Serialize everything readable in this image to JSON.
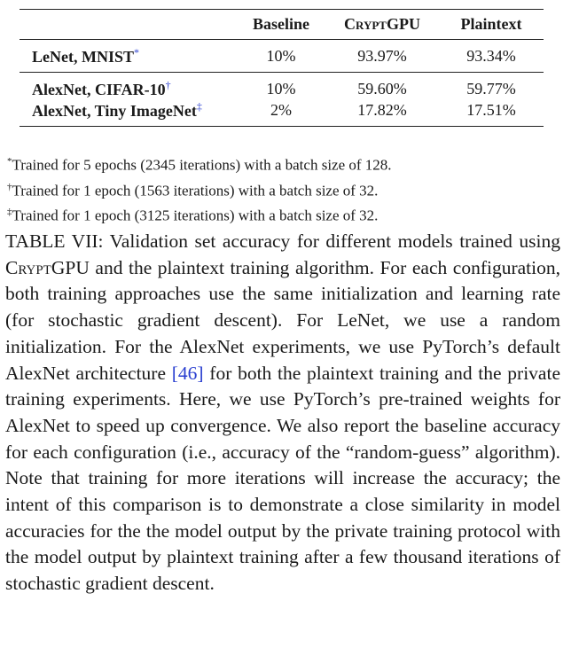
{
  "table": {
    "headers": [
      "",
      "Baseline",
      "CryptGPU",
      "Plaintext"
    ],
    "rows": [
      {
        "model": "LeNet, MNIST",
        "mark": "*",
        "baseline": "10%",
        "cryptgpu": "93.97%",
        "plaintext": "93.34%"
      },
      {
        "model": "AlexNet, CIFAR-10",
        "mark": "†",
        "baseline": "10%",
        "cryptgpu": "59.60%",
        "plaintext": "59.77%"
      },
      {
        "model": "AlexNet, Tiny ImageNet",
        "mark": "‡",
        "baseline": "2%",
        "cryptgpu": "17.82%",
        "plaintext": "17.51%"
      }
    ]
  },
  "footnotes": [
    {
      "symbol": "*",
      "text": "Trained for 5 epochs (2345 iterations) with a batch size of 128."
    },
    {
      "symbol": "†",
      "text": "Trained for 1 epoch (1563 iterations) with a batch size of 32."
    },
    {
      "symbol": "‡",
      "text": "Trained for 1 epoch (3125 iterations) with a batch size of 32."
    }
  ],
  "caption": {
    "part1": "TABLE VII: Validation set accuracy for different models trained using ",
    "cryptgpu": "CryptGPU",
    "part2": " and the plaintext training algorithm. For each configuration, both training approaches use the same initialization and learning rate (for stochastic gradient descent). For LeNet, we use a random initialization. For the AlexNet ex­periments, we use PyTorch’s default AlexNet architecture ",
    "ref": "[46]",
    "part3": " for both the plaintext training and the private training ex­periments. Here, we use PyTorch’s pre-trained weights for AlexNet to speed up convergence. We also report the baseline accuracy for each configuration (i.e., accuracy of the “random-guess” algorithm). Note that training for more iterations will increase the accuracy; the intent of this comparison is to demonstrate a close similarity in model accuracies for the the model output by the private training protocol with the model output by plaintext training after a few thousand iterations of stochastic gradient descent."
  }
}
